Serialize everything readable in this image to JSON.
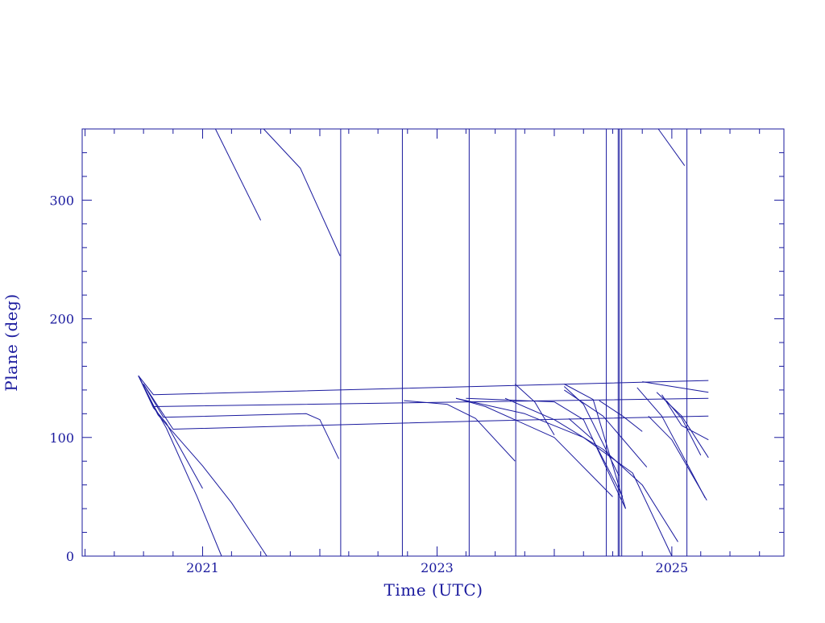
{
  "chart_data": {
    "type": "line",
    "title": "",
    "xlabel": "Time (UTC)",
    "ylabel": "Plane (deg)",
    "xlim": [
      "2019-12-23",
      "2025-12-16"
    ],
    "ylim": [
      0,
      360
    ],
    "x_ticks": [
      "2021",
      "2023",
      "2025"
    ],
    "y_ticks": [
      0,
      100,
      200,
      300
    ],
    "grid": false,
    "legend": "none",
    "color": "#1a1a9e",
    "vertical_lines": [
      "2022-03-07",
      "2022-09-15",
      "2023-04-11",
      "2023-09-03",
      "2024-06-11",
      "2024-07-18",
      "2024-07-22",
      "2024-07-29",
      "2025-02-17"
    ],
    "series": [
      {
        "x": [
          "2020-06-15",
          "2020-08-01",
          "2020-09-10",
          "2021-01-01"
        ],
        "y": [
          152,
          125,
          112,
          57
        ]
      },
      {
        "x": [
          "2020-06-15",
          "2020-08-01",
          "2020-09-10",
          "2020-12-15",
          "2021-03-01"
        ],
        "y": [
          152,
          127,
          108,
          50,
          0
        ]
      },
      {
        "x": [
          "2020-06-15",
          "2020-08-15",
          "2021-01-01",
          "2021-04-01",
          "2021-07-20"
        ],
        "y": [
          152,
          119,
          76,
          45,
          0
        ]
      },
      {
        "x": [
          "2020-06-15",
          "2020-08-01",
          "2025-04-25"
        ],
        "y": [
          152,
          136,
          148
        ]
      },
      {
        "x": [
          "2020-06-15",
          "2020-08-01",
          "2025-04-25"
        ],
        "y": [
          152,
          126,
          133
        ]
      },
      {
        "x": [
          "2020-07-01",
          "2020-09-01",
          "2021-11-20",
          "2022-01-01",
          "2022-03-01"
        ],
        "y": [
          145,
          117,
          120,
          115,
          82
        ]
      },
      {
        "x": [
          "2020-07-01",
          "2020-10-01",
          "2023-06-01",
          "2025-04-25"
        ],
        "y": [
          145,
          107,
          114,
          118
        ]
      },
      {
        "x": [
          "2021-02-10",
          "2021-07-01"
        ],
        "y": [
          360,
          283
        ]
      },
      {
        "x": [
          "2021-07-10",
          "2021-11-01",
          "2022-03-05"
        ],
        "y": [
          360,
          327,
          253
        ]
      },
      {
        "x": [
          "2022-09-20",
          "2023-02-01",
          "2023-05-01",
          "2023-09-01"
        ],
        "y": [
          131,
          128,
          116,
          80
        ]
      },
      {
        "x": [
          "2023-03-01",
          "2023-06-01",
          "2024-01-01",
          "2024-07-01"
        ],
        "y": [
          133,
          126,
          100,
          50
        ]
      },
      {
        "x": [
          "2023-03-01",
          "2023-10-01",
          "2024-04-01",
          "2024-09-01",
          "2025-01-01"
        ],
        "y": [
          133,
          120,
          100,
          70,
          0
        ]
      },
      {
        "x": [
          "2023-08-01",
          "2024-01-01",
          "2024-06-01",
          "2024-10-01",
          "2025-01-20"
        ],
        "y": [
          133,
          115,
          90,
          60,
          12
        ]
      },
      {
        "x": [
          "2023-04-01",
          "2024-01-01",
          "2024-04-01",
          "2024-08-10"
        ],
        "y": [
          133,
          130,
          115,
          40
        ]
      },
      {
        "x": [
          "2023-09-01",
          "2023-11-01",
          "2024-01-01"
        ],
        "y": [
          145,
          130,
          102
        ]
      },
      {
        "x": [
          "2024-02-01",
          "2024-05-01",
          "2024-08-10"
        ],
        "y": [
          145,
          132,
          40
        ]
      },
      {
        "x": [
          "2024-02-01",
          "2024-04-01",
          "2024-07-20"
        ],
        "y": [
          143,
          128,
          68
        ]
      },
      {
        "x": [
          "2024-02-01",
          "2024-06-01",
          "2024-10-15"
        ],
        "y": [
          140,
          118,
          75
        ]
      },
      {
        "x": [
          "2024-02-15",
          "2024-05-01",
          "2024-08-01"
        ],
        "y": [
          116,
          98,
          50
        ]
      },
      {
        "x": [
          "2024-05-20",
          "2024-08-01",
          "2024-10-01"
        ],
        "y": [
          131,
          118,
          105
        ]
      },
      {
        "x": [
          "2024-09-15",
          "2024-12-01",
          "2025-04-15"
        ],
        "y": [
          142,
          118,
          49
        ]
      },
      {
        "x": [
          "2024-10-20",
          "2025-01-01",
          "2025-04-20"
        ],
        "y": [
          118,
          98,
          47
        ]
      },
      {
        "x": [
          "2024-10-01",
          "2025-04-25"
        ],
        "y": [
          147,
          138
        ]
      },
      {
        "x": [
          "2024-11-15",
          "2025-02-01",
          "2025-04-25"
        ],
        "y": [
          138,
          118,
          83
        ]
      },
      {
        "x": [
          "2024-12-01",
          "2025-02-01",
          "2025-04-25"
        ],
        "y": [
          136,
          110,
          98
        ]
      },
      {
        "x": [
          "2024-12-15",
          "2025-02-01",
          "2025-04-01"
        ],
        "y": [
          131,
          116,
          85
        ]
      },
      {
        "x": [
          "2024-11-20",
          "2025-02-10"
        ],
        "y": [
          360,
          329
        ]
      }
    ]
  }
}
